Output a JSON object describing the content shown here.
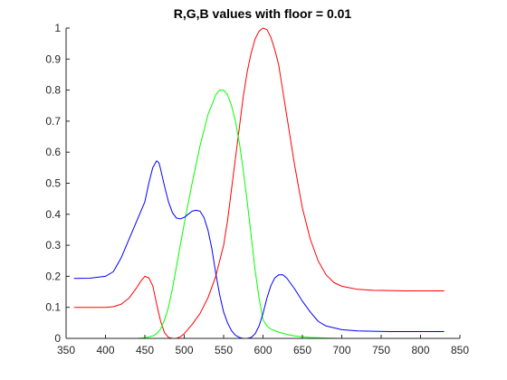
{
  "chart_data": {
    "type": "line",
    "title": "R,G,B values with floor = 0.01",
    "xlabel": "",
    "ylabel": "",
    "xlim": [
      350,
      850
    ],
    "ylim": [
      0,
      1
    ],
    "x_ticks": [
      350,
      400,
      450,
      500,
      550,
      600,
      650,
      700,
      750,
      800,
      850
    ],
    "y_ticks": [
      0,
      0.1,
      0.2,
      0.3,
      0.4,
      0.5,
      0.6,
      0.7,
      0.8,
      0.9,
      1
    ],
    "x_tick_labels": [
      "350",
      "400",
      "450",
      "500",
      "550",
      "600",
      "650",
      "700",
      "750",
      "800",
      "850"
    ],
    "y_tick_labels": [
      "0",
      "0.1",
      "0.2",
      "0.3",
      "0.4",
      "0.5",
      "0.6",
      "0.7",
      "0.8",
      "0.9",
      "1"
    ],
    "grid": false,
    "box": "open",
    "series": [
      {
        "color": "#ff0000",
        "x": [
          360,
          380,
          400,
          410,
          420,
          430,
          440,
          445,
          450,
          455,
          460,
          465,
          470,
          475,
          480,
          485,
          490,
          495,
          500,
          505,
          510,
          520,
          530,
          540,
          550,
          555,
          560,
          565,
          570,
          575,
          580,
          585,
          590,
          595,
          600,
          605,
          610,
          615,
          620,
          625,
          630,
          640,
          650,
          660,
          670,
          680,
          690,
          700,
          720,
          740,
          760,
          780,
          800,
          830
        ],
        "y": [
          0.1,
          0.1,
          0.1,
          0.102,
          0.11,
          0.13,
          0.165,
          0.185,
          0.2,
          0.195,
          0.17,
          0.11,
          0.055,
          0.018,
          0.003,
          0.0,
          0.0,
          0.005,
          0.015,
          0.03,
          0.045,
          0.08,
          0.13,
          0.2,
          0.3,
          0.38,
          0.48,
          0.58,
          0.68,
          0.78,
          0.86,
          0.92,
          0.965,
          0.99,
          1.0,
          0.995,
          0.97,
          0.93,
          0.88,
          0.8,
          0.72,
          0.56,
          0.42,
          0.32,
          0.25,
          0.205,
          0.18,
          0.168,
          0.158,
          0.155,
          0.154,
          0.153,
          0.153,
          0.153
        ]
      },
      {
        "color": "#00ff00",
        "x": [
          360,
          400,
          440,
          450,
          460,
          465,
          470,
          475,
          480,
          485,
          490,
          495,
          500,
          510,
          520,
          530,
          540,
          545,
          550,
          555,
          560,
          565,
          570,
          575,
          580,
          585,
          590,
          595,
          600,
          605,
          610,
          620,
          630,
          640,
          650,
          660,
          670,
          680,
          700,
          720,
          760,
          800,
          830
        ],
        "y": [
          0.0,
          0.0,
          0.0,
          0.002,
          0.008,
          0.015,
          0.03,
          0.06,
          0.1,
          0.16,
          0.23,
          0.3,
          0.37,
          0.5,
          0.62,
          0.72,
          0.785,
          0.8,
          0.8,
          0.785,
          0.75,
          0.7,
          0.63,
          0.54,
          0.44,
          0.33,
          0.22,
          0.13,
          0.06,
          0.04,
          0.03,
          0.02,
          0.013,
          0.008,
          0.005,
          0.003,
          0.002,
          0.001,
          0.0,
          0.0,
          0.0,
          0.0,
          0.0
        ]
      },
      {
        "color": "#0000ff",
        "x": [
          360,
          380,
          400,
          410,
          420,
          430,
          440,
          450,
          455,
          460,
          465,
          468,
          470,
          475,
          480,
          485,
          490,
          495,
          500,
          505,
          510,
          515,
          520,
          525,
          530,
          535,
          540,
          545,
          550,
          555,
          560,
          565,
          570,
          575,
          580,
          585,
          590,
          595,
          600,
          605,
          610,
          615,
          620,
          625,
          630,
          640,
          650,
          660,
          670,
          680,
          700,
          720,
          760,
          800,
          830
        ],
        "y": [
          0.193,
          0.194,
          0.2,
          0.215,
          0.26,
          0.32,
          0.38,
          0.44,
          0.5,
          0.55,
          0.572,
          0.565,
          0.545,
          0.49,
          0.44,
          0.405,
          0.388,
          0.385,
          0.39,
          0.4,
          0.41,
          0.413,
          0.41,
          0.39,
          0.35,
          0.29,
          0.21,
          0.14,
          0.085,
          0.05,
          0.025,
          0.01,
          0.003,
          0.0,
          0.0,
          0.003,
          0.015,
          0.04,
          0.08,
          0.13,
          0.17,
          0.195,
          0.205,
          0.205,
          0.195,
          0.16,
          0.12,
          0.085,
          0.055,
          0.04,
          0.028,
          0.024,
          0.022,
          0.022,
          0.022
        ]
      }
    ]
  }
}
